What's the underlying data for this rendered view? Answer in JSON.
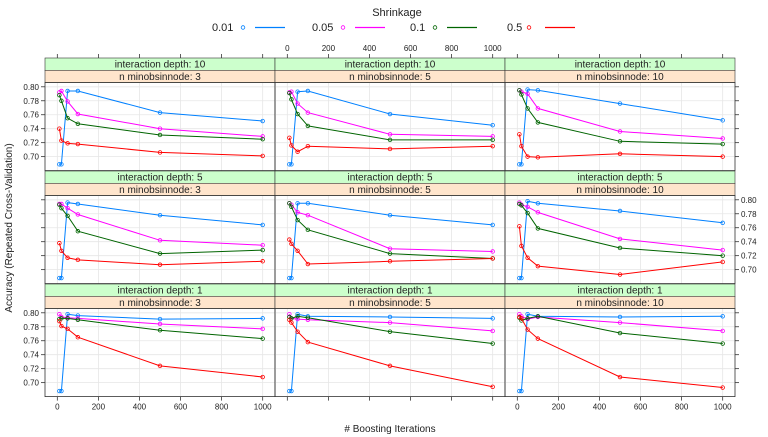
{
  "chart_data": {
    "type": "line",
    "xlabel": "# Boosting Iterations",
    "ylabel": "Accuracy (Repeated Cross-Validation)",
    "legend_title": "Shrinkage",
    "legend_position": "top",
    "x": [
      10,
      20,
      50,
      100,
      500,
      1000
    ],
    "xlim": [
      -60,
      1060
    ],
    "ylim": [
      0.68,
      0.806
    ],
    "x_ticks": [
      0,
      200,
      400,
      600,
      800,
      1000
    ],
    "y_ticks": [
      0.7,
      0.72,
      0.74,
      0.76,
      0.78,
      0.8
    ],
    "x_tick_labels": [
      "0",
      "200",
      "400",
      "600",
      "800",
      "1000"
    ],
    "y_tick_labels": [
      "0.70",
      "0.72",
      "0.74",
      "0.76",
      "0.78",
      "0.80"
    ],
    "grid": true,
    "series_meta": [
      {
        "name": "0.01",
        "color": "#0080ff"
      },
      {
        "name": "0.05",
        "color": "#ff00ff"
      },
      {
        "name": "0.1",
        "color": "#006400"
      },
      {
        "name": "0.5",
        "color": "#ff0000"
      }
    ],
    "panels": [
      {
        "strip1": "interaction depth: 10",
        "strip2": "n minobsinnode:  3",
        "series": [
          [
            0.689,
            0.689,
            0.794,
            0.794,
            0.763,
            0.751
          ],
          [
            0.792,
            0.794,
            0.779,
            0.761,
            0.74,
            0.729
          ],
          [
            0.788,
            0.78,
            0.755,
            0.747,
            0.731,
            0.725
          ],
          [
            0.74,
            0.723,
            0.719,
            0.718,
            0.706,
            0.701
          ]
        ]
      },
      {
        "strip1": "interaction depth: 10",
        "strip2": "n minobsinnode:  5",
        "series": [
          [
            0.689,
            0.689,
            0.793,
            0.794,
            0.761,
            0.745
          ],
          [
            0.792,
            0.793,
            0.776,
            0.763,
            0.732,
            0.729
          ],
          [
            0.791,
            0.782,
            0.761,
            0.744,
            0.724,
            0.724
          ],
          [
            0.727,
            0.716,
            0.707,
            0.715,
            0.711,
            0.715
          ]
        ]
      },
      {
        "strip1": "interaction depth: 10",
        "strip2": "n minobsinnode: 10",
        "series": [
          [
            0.689,
            0.689,
            0.796,
            0.795,
            0.776,
            0.752
          ],
          [
            0.795,
            0.793,
            0.79,
            0.769,
            0.736,
            0.726
          ],
          [
            0.795,
            0.789,
            0.769,
            0.749,
            0.722,
            0.718
          ],
          [
            0.732,
            0.715,
            0.7,
            0.699,
            0.704,
            0.7
          ]
        ]
      },
      {
        "strip1": "interaction depth:  5",
        "strip2": "n minobsinnode:  3",
        "series": [
          [
            0.688,
            0.688,
            0.796,
            0.794,
            0.778,
            0.764
          ],
          [
            0.794,
            0.794,
            0.788,
            0.779,
            0.742,
            0.735
          ],
          [
            0.793,
            0.788,
            0.777,
            0.755,
            0.723,
            0.728
          ],
          [
            0.738,
            0.727,
            0.717,
            0.714,
            0.707,
            0.712
          ]
        ]
      },
      {
        "strip1": "interaction depth:  5",
        "strip2": "n minobsinnode:  5",
        "series": [
          [
            0.688,
            0.688,
            0.795,
            0.795,
            0.778,
            0.764
          ],
          [
            0.795,
            0.793,
            0.782,
            0.778,
            0.73,
            0.726
          ],
          [
            0.795,
            0.79,
            0.771,
            0.757,
            0.723,
            0.716
          ],
          [
            0.743,
            0.737,
            0.727,
            0.708,
            0.712,
            0.716
          ]
        ]
      },
      {
        "strip1": "interaction depth:  5",
        "strip2": "n minobsinnode: 10",
        "series": [
          [
            0.688,
            0.688,
            0.798,
            0.795,
            0.784,
            0.767
          ],
          [
            0.796,
            0.793,
            0.79,
            0.782,
            0.744,
            0.728
          ],
          [
            0.794,
            0.792,
            0.781,
            0.759,
            0.731,
            0.72
          ],
          [
            0.762,
            0.734,
            0.717,
            0.705,
            0.693,
            0.711
          ]
        ]
      },
      {
        "strip1": "interaction depth:  1",
        "strip2": "n minobsinnode:  3",
        "series": [
          [
            0.688,
            0.688,
            0.798,
            0.796,
            0.791,
            0.792
          ],
          [
            0.798,
            0.794,
            0.793,
            0.792,
            0.784,
            0.777
          ],
          [
            0.791,
            0.792,
            0.792,
            0.79,
            0.775,
            0.763
          ],
          [
            0.788,
            0.781,
            0.777,
            0.765,
            0.724,
            0.708
          ]
        ]
      },
      {
        "strip1": "interaction depth:  1",
        "strip2": "n minobsinnode:  5",
        "series": [
          [
            0.688,
            0.688,
            0.798,
            0.795,
            0.794,
            0.792
          ],
          [
            0.798,
            0.792,
            0.791,
            0.79,
            0.786,
            0.774
          ],
          [
            0.794,
            0.792,
            0.795,
            0.793,
            0.773,
            0.756
          ],
          [
            0.79,
            0.786,
            0.773,
            0.758,
            0.724,
            0.694
          ]
        ]
      },
      {
        "strip1": "interaction depth:  1",
        "strip2": "n minobsinnode: 10",
        "series": [
          [
            0.688,
            0.688,
            0.798,
            0.795,
            0.794,
            0.795
          ],
          [
            0.798,
            0.795,
            0.791,
            0.794,
            0.786,
            0.774
          ],
          [
            0.793,
            0.789,
            0.792,
            0.795,
            0.771,
            0.756
          ],
          [
            0.794,
            0.792,
            0.776,
            0.763,
            0.708,
            0.693
          ]
        ]
      }
    ],
    "colors": {
      "strip_top": "#ccffcc",
      "strip_bottom": "#ffe5cc",
      "grid": "#e6e6e6",
      "frame": "#333333"
    }
  }
}
